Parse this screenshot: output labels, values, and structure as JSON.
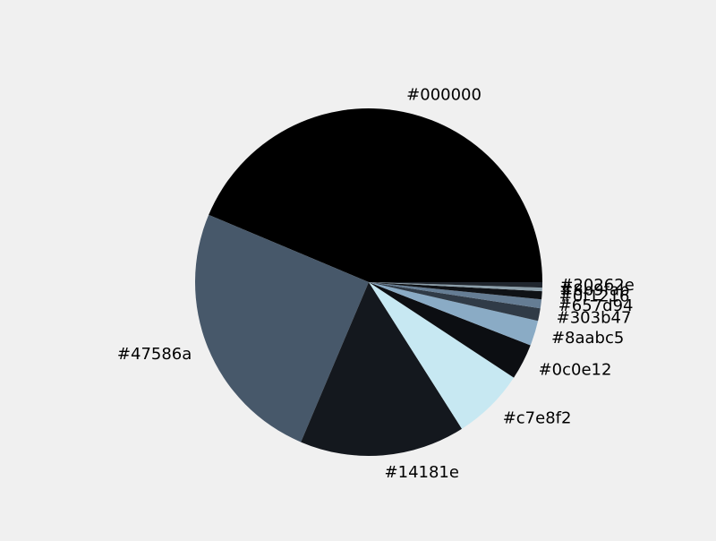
{
  "chart_data": {
    "type": "pie",
    "start_angle_deg": 0,
    "direction": "counterclockwise",
    "slices": [
      {
        "label": "#000000",
        "value": 43.67,
        "color": "#000000"
      },
      {
        "label": "#47586a",
        "value": 24.94,
        "color": "#47586a"
      },
      {
        "label": "#14181e",
        "value": 15.4,
        "color": "#14181e"
      },
      {
        "label": "#c7e8f2",
        "value": 6.73,
        "color": "#c7e8f2"
      },
      {
        "label": "#0c0e12",
        "value": 3.34,
        "color": "#0c0e12"
      },
      {
        "label": "#8aabc5",
        "value": 2.34,
        "color": "#8aabc5"
      },
      {
        "label": "#303b47",
        "value": 1.17,
        "color": "#303b47"
      },
      {
        "label": "#657d94",
        "value": 0.83,
        "color": "#657d94"
      },
      {
        "label": "#0f1216",
        "value": 0.75,
        "color": "#0f1216"
      },
      {
        "label": "#8b9fab",
        "value": 0.33,
        "color": "#8b9fab"
      },
      {
        "label": "#20262e",
        "value": 0.5,
        "color": "#20262e"
      }
    ]
  }
}
